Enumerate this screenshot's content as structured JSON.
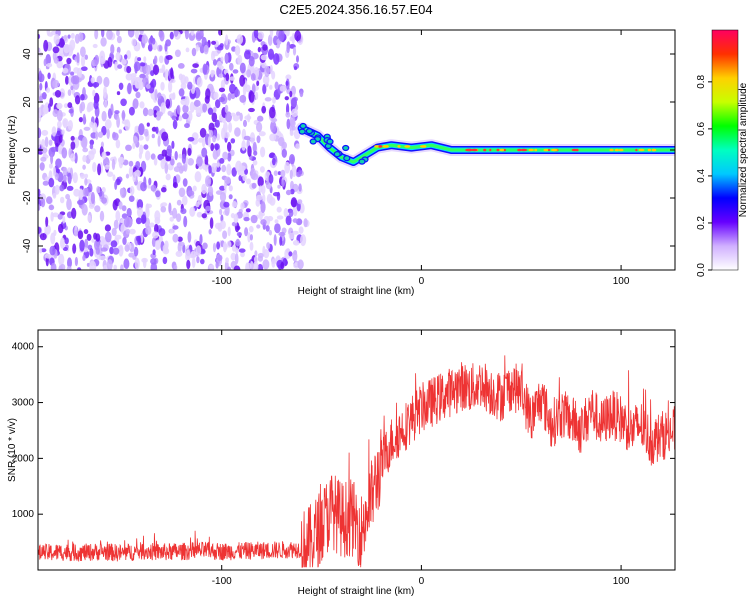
{
  "title": "C2E5.2024.356.16.57.E04",
  "chart_data": [
    {
      "type": "heatmap",
      "title": "C2E5.2024.356.16.57.E04",
      "xlabel": "Height of straight line (km)",
      "ylabel": "Frequency (Hz)",
      "xlim": [
        -192,
        127
      ],
      "ylim": [
        -50,
        50
      ],
      "xticks": [
        -100,
        0,
        100
      ],
      "yticks": [
        -40,
        -20,
        0,
        20,
        40
      ],
      "noise_region_x": [
        -192,
        -62
      ],
      "signal_track": [
        {
          "x": -60,
          "y": 9
        },
        {
          "x": -52,
          "y": 6
        },
        {
          "x": -46,
          "y": 1
        },
        {
          "x": -40,
          "y": -3
        },
        {
          "x": -34,
          "y": -5
        },
        {
          "x": -28,
          "y": -2
        },
        {
          "x": -22,
          "y": 1
        },
        {
          "x": -15,
          "y": 2
        },
        {
          "x": -5,
          "y": 1
        },
        {
          "x": 5,
          "y": 2
        },
        {
          "x": 15,
          "y": 0
        },
        {
          "x": 40,
          "y": 0
        },
        {
          "x": 80,
          "y": 0
        },
        {
          "x": 127,
          "y": 0
        }
      ],
      "colorbar": {
        "label": "Normalized spectral amplitude",
        "range": [
          0,
          1
        ],
        "ticks": [
          "0.0",
          "0.2",
          "0.4",
          "0.6",
          "0.8"
        ],
        "colormap": "rainbow"
      }
    },
    {
      "type": "line",
      "xlabel": "Height of straight line (km)",
      "ylabel": "SNR (10 * v/v)",
      "xlim": [
        -192,
        127
      ],
      "ylim": [
        0,
        4300
      ],
      "xticks": [
        -100,
        0,
        100
      ],
      "yticks": [
        1000,
        2000,
        3000,
        4000
      ],
      "color": "#ee3333",
      "series": [
        {
          "x": [
            -192,
            -180,
            -170,
            -160,
            -150,
            -140,
            -130,
            -120,
            -110,
            -100,
            -90,
            -80,
            -70,
            -60,
            -55,
            -50,
            -45,
            -40,
            -35,
            -30,
            -25,
            -20,
            -15,
            -10,
            -5,
            0,
            5,
            10,
            15,
            20,
            25,
            30,
            35,
            40,
            45,
            50,
            55,
            60,
            65,
            70,
            75,
            80,
            85,
            90,
            95,
            100,
            105,
            110,
            115,
            120,
            127
          ],
          "values": [
            300,
            320,
            310,
            330,
            300,
            340,
            320,
            330,
            350,
            330,
            340,
            350,
            360,
            380,
            500,
            800,
            1100,
            900,
            950,
            700,
            1300,
            1900,
            2300,
            2500,
            2700,
            2900,
            3000,
            3100,
            3200,
            3300,
            3250,
            3350,
            3200,
            3100,
            3300,
            3200,
            2700,
            3100,
            2600,
            2800,
            2700,
            2500,
            2900,
            2600,
            2800,
            2700,
            2500,
            2600,
            2300,
            2400,
            2500
          ]
        }
      ]
    }
  ]
}
